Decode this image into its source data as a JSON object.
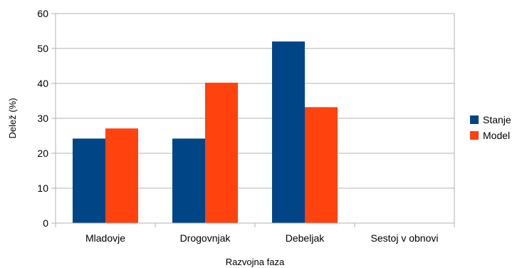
{
  "chart_data": {
    "type": "bar",
    "title": "",
    "xlabel": "Razvojna faza",
    "ylabel": "Delež (%)",
    "ylim": [
      0,
      60
    ],
    "yticks": [
      0,
      10,
      20,
      30,
      40,
      50,
      60
    ],
    "categories": [
      "Mladovje",
      "Drogovnjak",
      "Debeljak",
      "Sestoj v obnovi"
    ],
    "series": [
      {
        "name": "Stanje",
        "color": "#004586",
        "values": [
          24.2,
          24.2,
          52.0,
          0
        ]
      },
      {
        "name": "Model",
        "color": "#ff420e",
        "values": [
          27.1,
          40.2,
          33.2,
          0
        ]
      }
    ],
    "grid": true,
    "legend": "right"
  }
}
